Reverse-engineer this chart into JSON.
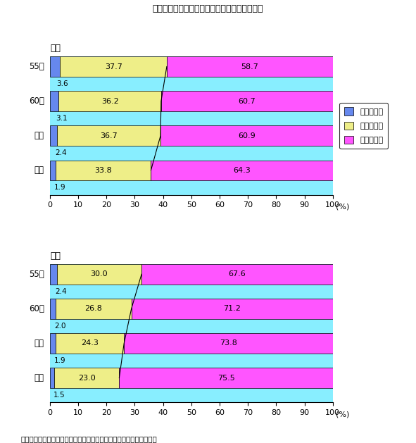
{
  "title": "第２－１－５図　日米における産業構造の変化",
  "footnote": "「国民経済計算年報」（経済企画庁）、米国商務省資料等により作成",
  "japan": {
    "label": "日本",
    "years": [
      "55年",
      "60年",
      "２年",
      "７年"
    ],
    "primary": [
      3.6,
      3.1,
      2.4,
      1.9
    ],
    "secondary": [
      37.7,
      36.2,
      36.7,
      33.8
    ],
    "tertiary": [
      58.7,
      60.7,
      60.9,
      64.3
    ]
  },
  "usa": {
    "label": "米国",
    "years": [
      "55年",
      "60年",
      "２年",
      "７年"
    ],
    "primary": [
      2.4,
      2.0,
      1.9,
      1.5
    ],
    "secondary": [
      30.0,
      26.8,
      24.3,
      23.0
    ],
    "tertiary": [
      67.6,
      71.2,
      73.8,
      75.5
    ]
  },
  "colors": {
    "primary": "#6688ee",
    "secondary": "#eeee88",
    "tertiary": "#ff55ff",
    "background": "#88eeff"
  },
  "legend_labels": [
    "第一次産業",
    "第二次産業",
    "第三次産業"
  ],
  "xlim": [
    0,
    100
  ],
  "xlabel": "(%)",
  "xticks": [
    0,
    10,
    20,
    30,
    40,
    50,
    60,
    70,
    80,
    90,
    100
  ]
}
